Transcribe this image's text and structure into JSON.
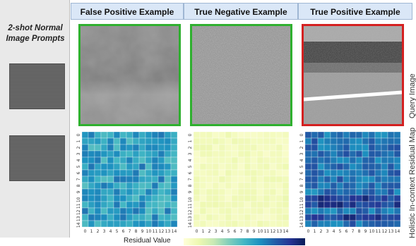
{
  "left_panel": {
    "title_line1": "2-shot Normal",
    "title_line2": "Image Prompts"
  },
  "columns": [
    {
      "label": "False Positive Example",
      "border": "#2fb02f"
    },
    {
      "label": "True Negative Example",
      "border": "#2fb02f"
    },
    {
      "label": "True Positive Example",
      "border": "#d42020"
    }
  ],
  "side_labels": {
    "top": "Query Image",
    "bottom": "Holistic In-context Residual Map"
  },
  "legend": {
    "label": "Residual Value"
  },
  "heatmap_ticks": [
    "0",
    "1",
    "2",
    "3",
    "4",
    "5",
    "6",
    "7",
    "8",
    "9",
    "10",
    "11",
    "12",
    "13",
    "14"
  ],
  "chart_data": [
    {
      "type": "heatmap",
      "name": "",
      "cmap_range": [
        0,
        1
      ],
      "shade": "mid"
    },
    {
      "type": "heatmap",
      "name": "",
      "cmap_range": [
        0,
        1
      ],
      "shade": "low"
    },
    {
      "type": "heatmap",
      "name": "",
      "cmap_range": [
        0,
        1
      ],
      "shade": "high"
    }
  ]
}
